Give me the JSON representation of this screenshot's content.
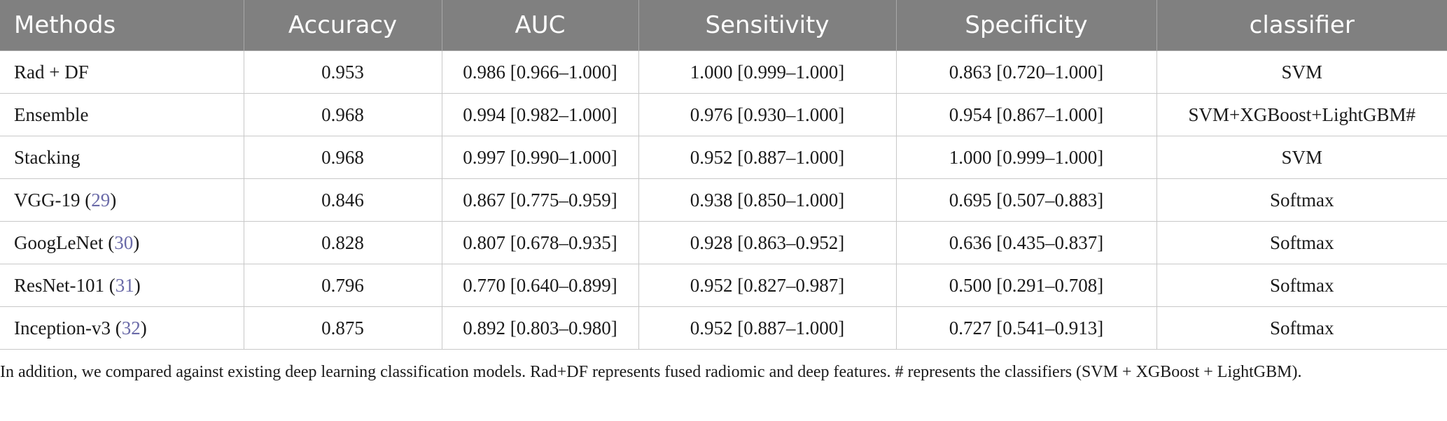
{
  "table": {
    "headers": [
      "Methods",
      "Accuracy",
      "AUC",
      "Sensitivity",
      "Specificity",
      "classifier"
    ],
    "rows": [
      {
        "method": "Rad + DF",
        "ref": "",
        "accuracy": "0.953",
        "auc": "0.986 [0.966–1.000]",
        "sensitivity": "1.000 [0.999–1.000]",
        "specificity": "0.863 [0.720–1.000]",
        "classifier": "SVM"
      },
      {
        "method": "Ensemble",
        "ref": "",
        "accuracy": "0.968",
        "auc": "0.994 [0.982–1.000]",
        "sensitivity": "0.976 [0.930–1.000]",
        "specificity": "0.954 [0.867–1.000]",
        "classifier": "SVM+XGBoost+LightGBM#"
      },
      {
        "method": "Stacking",
        "ref": "",
        "accuracy": "0.968",
        "auc": "0.997 [0.990–1.000]",
        "sensitivity": "0.952 [0.887–1.000]",
        "specificity": "1.000 [0.999–1.000]",
        "classifier": "SVM"
      },
      {
        "method": "VGG-19",
        "ref": "29",
        "accuracy": "0.846",
        "auc": "0.867 [0.775–0.959]",
        "sensitivity": "0.938 [0.850–1.000]",
        "specificity": "0.695 [0.507–0.883]",
        "classifier": "Softmax"
      },
      {
        "method": "GoogLeNet",
        "ref": "30",
        "accuracy": "0.828",
        "auc": "0.807 [0.678–0.935]",
        "sensitivity": "0.928 [0.863–0.952]",
        "specificity": "0.636 [0.435–0.837]",
        "classifier": "Softmax"
      },
      {
        "method": "ResNet-101",
        "ref": "31",
        "accuracy": "0.796",
        "auc": "0.770 [0.640–0.899]",
        "sensitivity": "0.952 [0.827–0.987]",
        "specificity": "0.500 [0.291–0.708]",
        "classifier": "Softmax"
      },
      {
        "method": "Inception-v3",
        "ref": "32",
        "accuracy": "0.875",
        "auc": "0.892 [0.803–0.980]",
        "sensitivity": "0.952 [0.887–1.000]",
        "specificity": "0.727 [0.541–0.913]",
        "classifier": "Softmax"
      }
    ]
  },
  "footnote": "In addition, we compared against existing deep learning classification models. Rad+DF represents fused radiomic and deep features. # represents the classifiers (SVM + XGBoost + LightGBM).",
  "colors": {
    "header_bg": "#808080",
    "header_text": "#ffffff",
    "ref_link": "#6a6aa8",
    "border": "#c8c8c8"
  }
}
